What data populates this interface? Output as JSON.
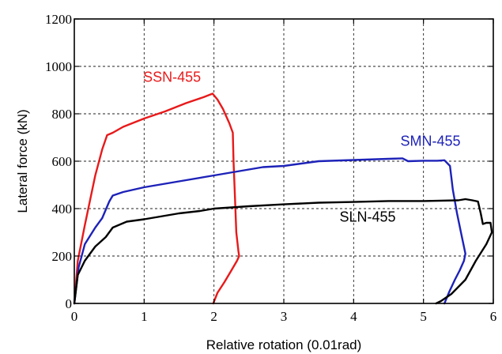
{
  "chart_data": {
    "type": "line",
    "xlabel": "Relative rotation (0.01rad)",
    "ylabel": "Lateral force (kN)",
    "xlim": [
      0,
      6
    ],
    "ylim": [
      0,
      1200
    ],
    "xticks": [
      "0",
      "1",
      "2",
      "3",
      "4",
      "5",
      "6"
    ],
    "yticks": [
      "0",
      "200",
      "400",
      "600",
      "800",
      "1000",
      "1200"
    ],
    "grid": true,
    "series": [
      {
        "name": "SSN-455",
        "color": "#e8191a",
        "points": [
          [
            0,
            0
          ],
          [
            0.05,
            180
          ],
          [
            0.15,
            330
          ],
          [
            0.3,
            540
          ],
          [
            0.4,
            650
          ],
          [
            0.47,
            710
          ],
          [
            0.55,
            720
          ],
          [
            0.7,
            745
          ],
          [
            1.0,
            780
          ],
          [
            1.3,
            810
          ],
          [
            1.6,
            845
          ],
          [
            1.85,
            870
          ],
          [
            1.98,
            885
          ],
          [
            2.05,
            860
          ],
          [
            2.13,
            820
          ],
          [
            2.22,
            760
          ],
          [
            2.27,
            720
          ],
          [
            2.28,
            600
          ],
          [
            2.3,
            450
          ],
          [
            2.32,
            300
          ],
          [
            2.35,
            220
          ],
          [
            2.36,
            200
          ],
          [
            2.33,
            180
          ],
          [
            2.25,
            140
          ],
          [
            2.15,
            90
          ],
          [
            2.05,
            45
          ],
          [
            1.99,
            0
          ]
        ]
      },
      {
        "name": "SMN-455",
        "color": "#1d22b8",
        "points": [
          [
            0,
            0
          ],
          [
            0.06,
            150
          ],
          [
            0.15,
            250
          ],
          [
            0.3,
            320
          ],
          [
            0.4,
            360
          ],
          [
            0.5,
            430
          ],
          [
            0.55,
            455
          ],
          [
            0.7,
            470
          ],
          [
            1.0,
            490
          ],
          [
            1.5,
            515
          ],
          [
            2.0,
            540
          ],
          [
            2.5,
            565
          ],
          [
            2.7,
            575
          ],
          [
            3.0,
            580
          ],
          [
            3.5,
            600
          ],
          [
            4.0,
            605
          ],
          [
            4.5,
            610
          ],
          [
            4.7,
            612
          ],
          [
            4.78,
            600
          ],
          [
            5.0,
            602
          ],
          [
            5.2,
            602
          ],
          [
            5.3,
            604
          ],
          [
            5.38,
            580
          ],
          [
            5.42,
            480
          ],
          [
            5.48,
            380
          ],
          [
            5.55,
            280
          ],
          [
            5.6,
            210
          ],
          [
            5.58,
            180
          ],
          [
            5.52,
            140
          ],
          [
            5.45,
            100
          ],
          [
            5.37,
            50
          ],
          [
            5.3,
            0
          ]
        ]
      },
      {
        "name": "SLN-455",
        "color": "#000000",
        "points": [
          [
            0,
            0
          ],
          [
            0.05,
            120
          ],
          [
            0.15,
            180
          ],
          [
            0.3,
            240
          ],
          [
            0.45,
            280
          ],
          [
            0.55,
            320
          ],
          [
            0.75,
            345
          ],
          [
            1.0,
            355
          ],
          [
            1.5,
            380
          ],
          [
            1.8,
            390
          ],
          [
            2.0,
            400
          ],
          [
            2.5,
            410
          ],
          [
            3.0,
            418
          ],
          [
            3.5,
            425
          ],
          [
            4.0,
            428
          ],
          [
            4.5,
            432
          ],
          [
            5.0,
            432
          ],
          [
            5.5,
            435
          ],
          [
            5.6,
            440
          ],
          [
            5.7,
            435
          ],
          [
            5.78,
            430
          ],
          [
            5.82,
            380
          ],
          [
            5.85,
            335
          ],
          [
            5.9,
            340
          ],
          [
            5.96,
            340
          ],
          [
            5.98,
            300
          ],
          [
            5.9,
            250
          ],
          [
            5.75,
            180
          ],
          [
            5.6,
            100
          ],
          [
            5.4,
            40
          ],
          [
            5.25,
            10
          ],
          [
            5.18,
            0
          ]
        ]
      }
    ]
  }
}
